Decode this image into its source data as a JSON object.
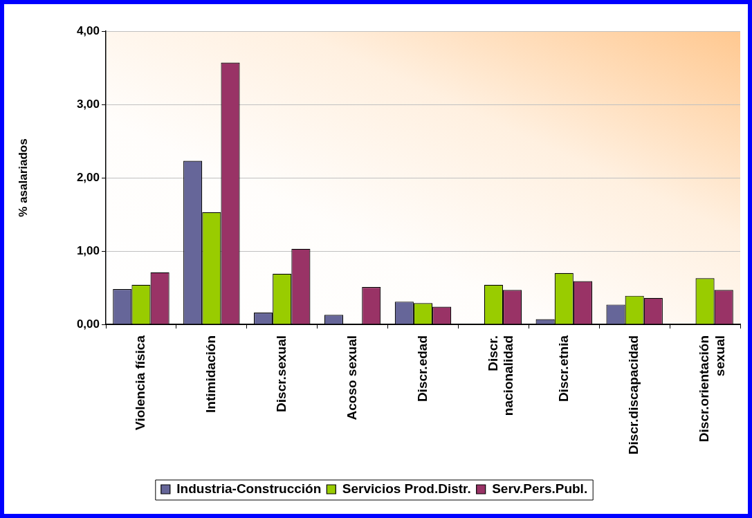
{
  "chart_data": {
    "type": "bar",
    "ylabel": "% asalariados",
    "categories": [
      "Violencia física",
      "Intimidación",
      "Discr.sexual",
      "Acoso sexual",
      "Discr.edad",
      "Discr. nacionalidad",
      "Discr.etnia",
      "Discr.discapacidad",
      "Discr.orientación sexual"
    ],
    "series": [
      {
        "name": "Industria-Construcción",
        "color": "#666699",
        "values": [
          0.48,
          2.23,
          0.16,
          0.13,
          0.31,
          0,
          0.07,
          0.27,
          0
        ]
      },
      {
        "name": "Servicios Prod.Distr.",
        "color": "#99cc00",
        "values": [
          0.54,
          1.53,
          0.69,
          0,
          0.29,
          0.54,
          0.7,
          0.39,
          0.63
        ]
      },
      {
        "name": "Serv.Pers.Publ.",
        "color": "#993366",
        "values": [
          0.71,
          3.57,
          1.03,
          0.51,
          0.24,
          0.47,
          0.59,
          0.36,
          0.47
        ]
      }
    ],
    "ylim": [
      0,
      4
    ],
    "yticks": [
      {
        "value": 0,
        "label": "0,00"
      },
      {
        "value": 1,
        "label": "1,00"
      },
      {
        "value": 2,
        "label": "2,00"
      },
      {
        "value": 3,
        "label": "3,00"
      },
      {
        "value": 4,
        "label": "4,00"
      }
    ],
    "grid": "y",
    "legend": "bottom"
  }
}
